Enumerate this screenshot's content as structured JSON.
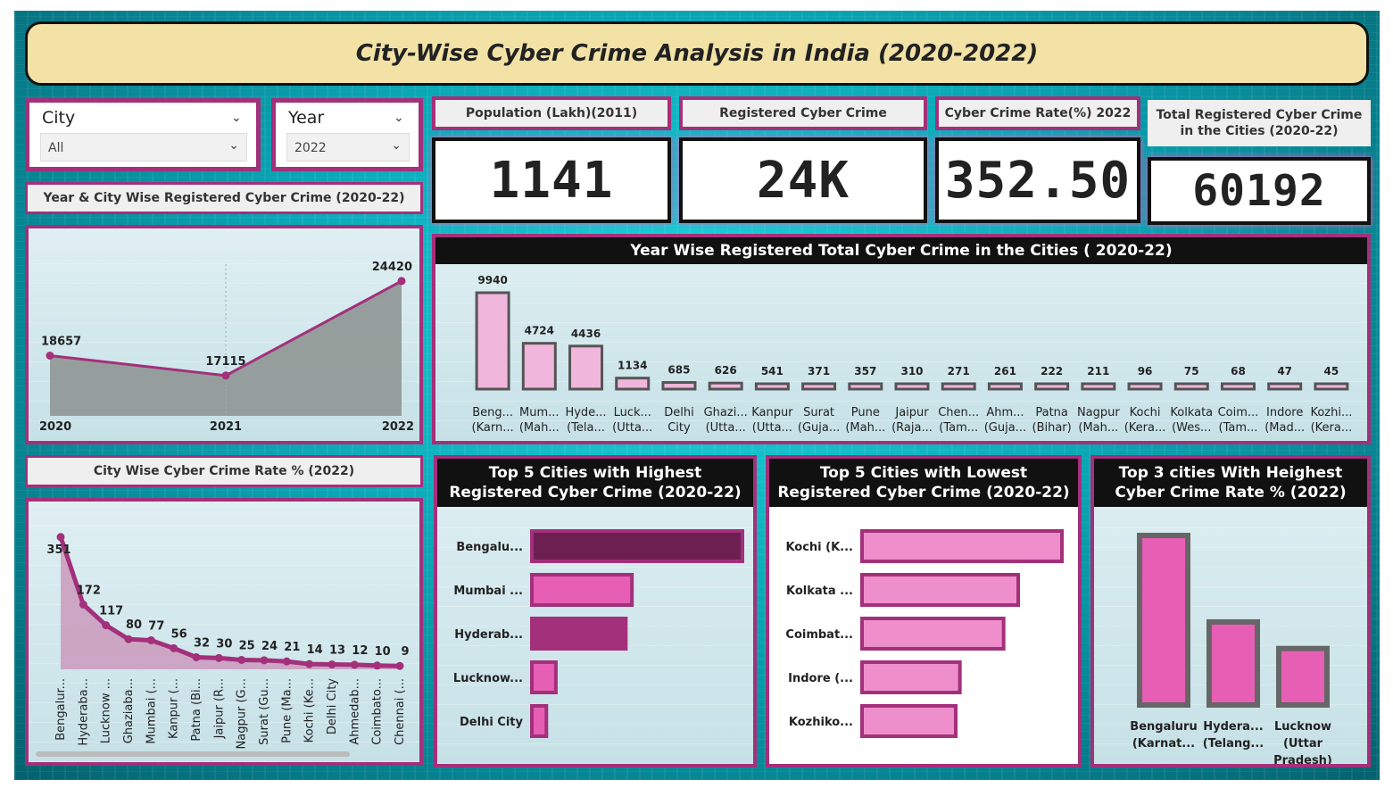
{
  "title": "City-Wise Cyber Crime Analysis in India (2020-2022)",
  "slicers": {
    "city": {
      "label": "City",
      "value": "All"
    },
    "year": {
      "label": "Year",
      "value": "2022"
    }
  },
  "kpis": [
    {
      "label": "Population (Lakh)(2011)",
      "value": "1141"
    },
    {
      "label": "Registered Cyber Crime",
      "value": "24K"
    },
    {
      "label": "Cyber Crime Rate(%) 2022",
      "value": "352.50"
    },
    {
      "label": "Total Registered Cyber Crime in the Cities (2020-22)",
      "value": "60192"
    }
  ],
  "panel_titles": {
    "year_city": "Year & City Wise Registered Cyber Crime (2020-22)",
    "year_wise_total": "Year Wise Registered Total Cyber Crime in the Cities ( 2020-22)",
    "rate_2022": "City Wise Cyber Crime Rate % (2022)",
    "top5_high": "Top 5 Cities with Highest Registered Cyber Crime (2020-22)",
    "top5_low": "Top 5 Cities with Lowest Registered Cyber Crime (2020-22)",
    "top3_rate": "Top 3 cities With Heighest Cyber Crime Rate % (2022)"
  },
  "colors": {
    "accent": "#a3307b",
    "pink": "#e65fb5",
    "pink_light": "#f1b6dc",
    "dark_magenta": "#6d1f52",
    "grey": "#666666"
  },
  "chart_data": [
    {
      "id": "year_trend",
      "type": "area",
      "categories": [
        "2020",
        "2021",
        "2022"
      ],
      "values": [
        18657,
        17115,
        24420
      ],
      "ylim": [
        14000,
        26000
      ]
    },
    {
      "id": "city_total",
      "type": "bar",
      "categories": [
        "Beng... (Karn...",
        "Mum... (Mah...",
        "Hyde... (Tela...",
        "Luck... (Utta...",
        "Delhi City",
        "Ghazi... (Utta...",
        "Kanpur (Utta...",
        "Surat (Guja...",
        "Pune (Mah...",
        "Jaipur (Raja...",
        "Chen... (Tam...",
        "Ahm... (Guja...",
        "Patna (Bihar)",
        "Nagpur (Mah...",
        "Kochi (Kera...",
        "Kolkata (Wes...",
        "Coim... (Tam...",
        "Indore (Mad...",
        "Kozhi... (Kera..."
      ],
      "values": [
        9940,
        4724,
        4436,
        1134,
        685,
        626,
        541,
        371,
        357,
        310,
        271,
        261,
        222,
        211,
        96,
        75,
        68,
        47,
        45
      ]
    },
    {
      "id": "rate_2022",
      "type": "area",
      "categories": [
        "Bengalur...",
        "Hyderaba...",
        "Lucknow ...",
        "Ghaziaba...",
        "Mumbai (...",
        "Kanpur (...",
        "Patna (Bi...",
        "Jaipur (R...",
        "Nagpur (G...",
        "Surat (Gu...",
        "Pune (Ma...",
        "Kochi (Ke...",
        "Delhi City",
        "Ahmedab...",
        "Coimbato...",
        "Chennai (..."
      ],
      "values": [
        351,
        172,
        117,
        80,
        77,
        56,
        32,
        30,
        25,
        24,
        21,
        14,
        13,
        12,
        10,
        9
      ],
      "ylim": [
        0,
        360
      ]
    },
    {
      "id": "top5_high",
      "type": "bar",
      "orientation": "horizontal",
      "categories": [
        "Bengalu...",
        "Mumbai ...",
        "Hyderab...",
        "Lucknow...",
        "Delhi City"
      ],
      "values": [
        9940,
        4724,
        4436,
        1134,
        685
      ]
    },
    {
      "id": "top5_low",
      "type": "bar",
      "orientation": "horizontal",
      "categories": [
        "Kochi (K...",
        "Kolkata ...",
        "Coimbat...",
        "Indore (...",
        "Kozhiko..."
      ],
      "values": [
        96,
        75,
        68,
        47,
        45
      ]
    },
    {
      "id": "top3_rate",
      "type": "bar",
      "categories": [
        [
          "Bengaluru",
          "(Karnat..."
        ],
        [
          "Hydera...",
          "(Telang..."
        ],
        [
          "Lucknow",
          "(Uttar",
          "Pradesh)"
        ]
      ],
      "values": [
        351,
        172,
        117
      ]
    }
  ]
}
